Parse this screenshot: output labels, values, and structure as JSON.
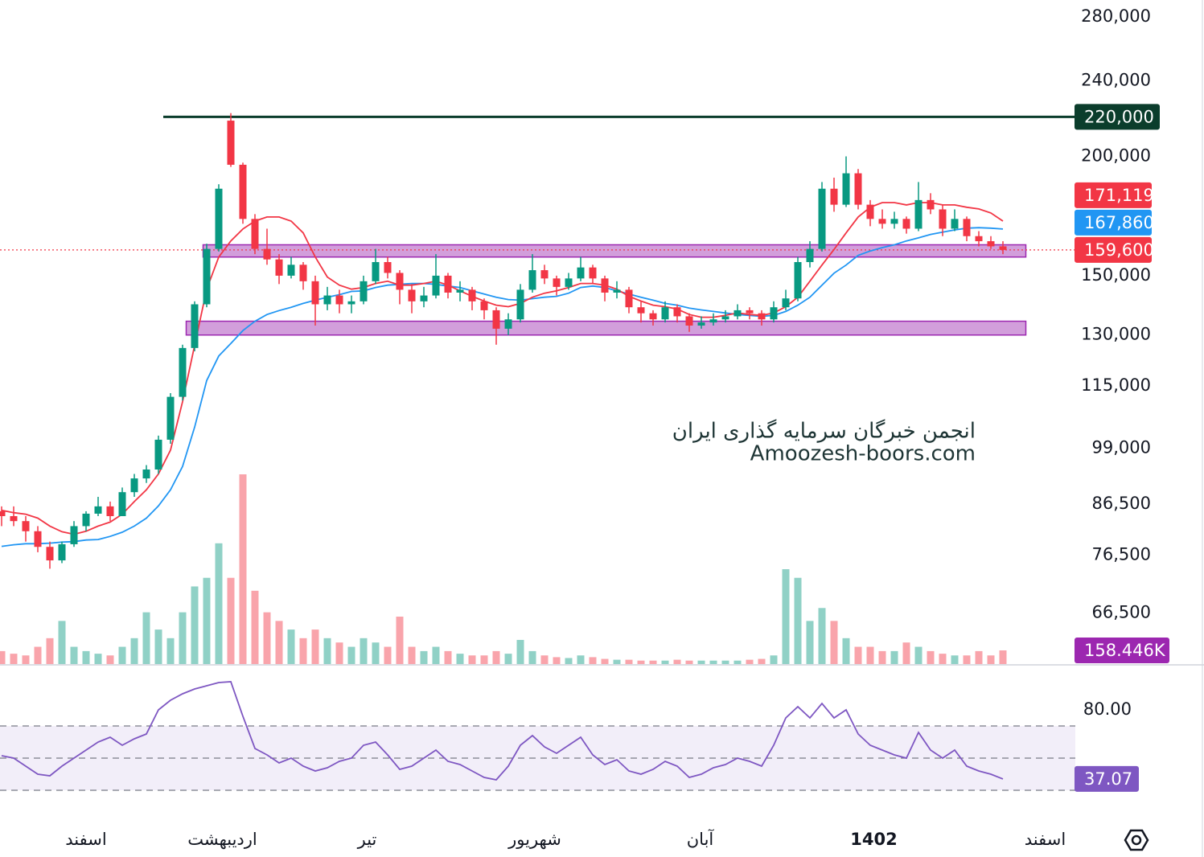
{
  "chart_data": {
    "type": "candlestick",
    "log_scale": true,
    "grid": false,
    "up_color": "#089981",
    "down_color": "#f23645",
    "x": [
      0,
      1,
      2,
      3,
      4,
      5,
      6,
      7,
      8,
      9,
      10,
      11,
      12,
      13,
      14,
      15,
      16,
      17,
      18,
      19,
      20,
      21,
      22,
      23,
      24,
      25,
      26,
      27,
      28,
      29,
      30,
      31,
      32,
      33,
      34,
      35,
      36,
      37,
      38,
      39,
      40,
      41,
      42,
      43,
      44,
      45,
      46,
      47,
      48,
      49,
      50,
      51,
      52,
      53,
      54,
      55,
      56,
      57,
      58,
      59,
      60,
      61,
      62,
      63,
      64,
      65,
      66,
      67,
      68,
      69,
      70,
      71,
      72,
      73,
      74,
      75,
      76,
      77,
      78,
      79,
      80,
      81,
      82,
      83
    ],
    "xlim": [
      0,
      89
    ],
    "xticks": [
      {
        "value": 7,
        "label": "اسفند"
      },
      {
        "value": 18.3,
        "label": "اردیبهشت"
      },
      {
        "value": 30.3,
        "label": "تیر"
      },
      {
        "value": 44.2,
        "label": "شهریور"
      },
      {
        "value": 57.9,
        "label": "آبان"
      },
      {
        "value": 72.3,
        "label": "1402"
      },
      {
        "value": 86.5,
        "label": "اسفند"
      }
    ],
    "ylim": [
      58800,
      291600
    ],
    "yticks": [
      {
        "value": 280000,
        "label": "280,000"
      },
      {
        "value": 240000,
        "label": "240,000"
      },
      {
        "value": 200000,
        "label": "200,000"
      },
      {
        "value": 150000,
        "label": "150,000"
      },
      {
        "value": 130000,
        "label": "130,000"
      },
      {
        "value": 115000,
        "label": "115,000"
      },
      {
        "value": 99000,
        "label": "99,000"
      },
      {
        "value": 86500,
        "label": "86,500"
      },
      {
        "value": 76500,
        "label": "76,500"
      },
      {
        "value": 66500,
        "label": "66,500"
      }
    ],
    "open": [
      85000,
      84000,
      83000,
      81000,
      78000,
      75500,
      78500,
      82000,
      84500,
      86000,
      84000,
      89000,
      92000,
      94000,
      101000,
      112000,
      126000,
      140000,
      160000,
      218000,
      196000,
      172000,
      160000,
      156000,
      150000,
      154000,
      148000,
      140000,
      143000,
      140000,
      141000,
      148000,
      155000,
      151000,
      145000,
      141000,
      143000,
      150000,
      144000,
      145000,
      141000,
      138000,
      132000,
      135000,
      145000,
      152000,
      149000,
      146000,
      149000,
      153000,
      149000,
      144000,
      145000,
      139000,
      137000,
      135000,
      139000,
      136000,
      133000,
      134000,
      135000,
      136000,
      138000,
      137000,
      135000,
      139000,
      142000,
      155000,
      160000,
      185000,
      178000,
      192000,
      178000,
      172000,
      170000,
      172000,
      168000,
      180000,
      176000,
      168000,
      172000,
      165000,
      163000,
      161000
    ],
    "high": [
      86000,
      86000,
      84000,
      82000,
      79000,
      79000,
      83000,
      85000,
      88000,
      87000,
      90000,
      93000,
      95000,
      102000,
      113000,
      127000,
      141000,
      162000,
      187000,
      222000,
      197000,
      174000,
      168000,
      158000,
      157000,
      155000,
      150000,
      146000,
      145000,
      143000,
      150000,
      160000,
      157000,
      152000,
      147000,
      146000,
      158000,
      151000,
      148000,
      146000,
      142000,
      139000,
      137000,
      147000,
      158000,
      154000,
      150000,
      151000,
      157000,
      154000,
      150000,
      148000,
      146000,
      141000,
      138000,
      141000,
      140000,
      137000,
      136000,
      137000,
      138000,
      140000,
      139000,
      138000,
      141000,
      145000,
      157000,
      163000,
      188000,
      190000,
      200000,
      194000,
      180000,
      176000,
      175000,
      173000,
      188000,
      183000,
      178000,
      176000,
      173000,
      167000,
      165000,
      163000
    ],
    "low": [
      82000,
      82000,
      79000,
      77000,
      74000,
      75000,
      78000,
      81000,
      84000,
      83000,
      84000,
      88000,
      91000,
      93000,
      100000,
      111000,
      125000,
      139000,
      159000,
      195000,
      170000,
      158000,
      154000,
      147000,
      149000,
      145000,
      133000,
      138000,
      137000,
      137000,
      140000,
      147000,
      149000,
      140000,
      137000,
      139000,
      142000,
      142000,
      141000,
      138000,
      135000,
      127000,
      130000,
      134000,
      144000,
      147000,
      143000,
      145000,
      148000,
      147000,
      141000,
      142000,
      137000,
      134000,
      133000,
      134000,
      134000,
      131000,
      132000,
      133000,
      134000,
      135000,
      135000,
      133000,
      134000,
      138000,
      141000,
      153000,
      159000,
      175000,
      177000,
      176000,
      169000,
      168000,
      168000,
      166000,
      167000,
      174000,
      165000,
      167000,
      163000,
      161000,
      160000,
      158000
    ],
    "close": [
      84000,
      83000,
      81000,
      78000,
      75500,
      78500,
      82000,
      84500,
      86000,
      84000,
      89000,
      92000,
      94000,
      101000,
      112000,
      126000,
      140000,
      160000,
      185000,
      196000,
      172000,
      160000,
      156000,
      150000,
      154000,
      148000,
      140000,
      143000,
      140000,
      141000,
      148000,
      155000,
      151000,
      145000,
      141000,
      143000,
      150000,
      144000,
      145000,
      141000,
      138000,
      132000,
      135000,
      145000,
      152000,
      149000,
      146000,
      149000,
      153000,
      149000,
      144000,
      145000,
      139000,
      137000,
      135000,
      139000,
      136000,
      133000,
      134000,
      135000,
      136000,
      138000,
      137000,
      135000,
      139000,
      142000,
      155000,
      160000,
      185000,
      178000,
      192000,
      178000,
      172000,
      170000,
      172000,
      168000,
      180000,
      176000,
      168000,
      172000,
      165000,
      163000,
      161000,
      159600
    ],
    "last_price_label": "159,600",
    "ma_fast": {
      "color": "#f23645",
      "last_label": "171,119.5",
      "values": [
        85200,
        84700,
        84400,
        83600,
        82000,
        80900,
        80400,
        81000,
        82000,
        82800,
        84400,
        87000,
        89500,
        93000,
        98500,
        110700,
        126800,
        145200,
        156900,
        163100,
        167900,
        171100,
        172800,
        172800,
        171100,
        166300,
        156900,
        149500,
        146600,
        145200,
        145800,
        147200,
        148000,
        146600,
        146600,
        147200,
        148000,
        146600,
        144600,
        142700,
        141100,
        139700,
        139200,
        140300,
        142400,
        143800,
        144600,
        145800,
        147200,
        147200,
        146600,
        145200,
        142700,
        141100,
        139700,
        139200,
        138400,
        136600,
        135700,
        135700,
        136300,
        137100,
        136600,
        136300,
        137100,
        139200,
        142400,
        148000,
        153900,
        159800,
        166300,
        172800,
        176900,
        178900,
        178900,
        177900,
        178900,
        178900,
        177900,
        177900,
        176900,
        176200,
        174500,
        171119.5
      ]
    },
    "ma_slow": {
      "color": "#2196f3",
      "last_label": "167,860.415",
      "values": [
        78100,
        78400,
        78600,
        78600,
        78700,
        78900,
        79000,
        79300,
        79400,
        80000,
        80800,
        82000,
        83600,
        86100,
        89500,
        94700,
        104100,
        116500,
        123600,
        127400,
        131400,
        134400,
        136600,
        137900,
        139000,
        140300,
        141400,
        142400,
        143300,
        144400,
        144600,
        145800,
        146600,
        146900,
        147200,
        147200,
        146900,
        146300,
        145800,
        144600,
        143500,
        142400,
        141600,
        141400,
        141900,
        142400,
        142700,
        143800,
        145800,
        146300,
        145800,
        144600,
        143500,
        142400,
        141400,
        140300,
        139700,
        138700,
        138100,
        137600,
        137100,
        136600,
        136300,
        136000,
        136300,
        137600,
        139700,
        142400,
        146600,
        150900,
        153900,
        157500,
        159200,
        160500,
        161600,
        163100,
        164300,
        165700,
        166600,
        167500,
        168200,
        168400,
        168200,
        167860.415
      ]
    },
    "resistance": {
      "value": 220000,
      "label": "220,000",
      "from": 13.4,
      "to": 89,
      "color": "#0b3d2c"
    },
    "zones": [
      {
        "low": 156900,
        "high": 161600,
        "from": 16.7,
        "to": 84.9
      },
      {
        "low": 130000,
        "high": 134400,
        "from": 15.3,
        "to": 84.9
      }
    ],
    "zone_color": "#9c27b0",
    "volume": [
      150000,
      120000,
      100000,
      200000,
      300000,
      500000,
      200000,
      150000,
      120000,
      100000,
      200000,
      300000,
      600000,
      400000,
      300000,
      600000,
      900000,
      1000000,
      1400000,
      1000000,
      2200000,
      850000,
      600000,
      500000,
      400000,
      300000,
      400000,
      300000,
      250000,
      200000,
      300000,
      250000,
      200000,
      550000,
      200000,
      150000,
      200000,
      150000,
      120000,
      100000,
      100000,
      150000,
      120000,
      280000,
      150000,
      100000,
      80000,
      70000,
      100000,
      80000,
      60000,
      50000,
      50000,
      40000,
      40000,
      40000,
      50000,
      40000,
      40000,
      40000,
      40000,
      40000,
      50000,
      60000,
      100000,
      1100000,
      1000000,
      500000,
      650000,
      500000,
      300000,
      200000,
      200000,
      150000,
      150000,
      250000,
      200000,
      150000,
      120000,
      100000,
      100000,
      150000,
      100000,
      158446
    ],
    "volume_ylim": [
      0,
      7700000
    ],
    "volume_last_label": "158.446K",
    "volume_label_color": "#9c27b0",
    "rsi": {
      "color": "#7e57c2",
      "values": [
        51.5,
        50,
        45,
        40,
        39,
        45,
        50,
        55,
        60,
        63,
        58,
        62,
        65,
        80,
        86,
        90,
        93,
        95,
        97,
        97.5,
        76,
        56,
        52,
        47,
        50,
        45,
        42,
        44,
        48,
        50,
        58,
        60,
        52,
        43,
        45,
        50,
        55,
        48,
        46,
        42,
        38,
        36.5,
        45,
        58,
        64,
        57,
        53,
        58,
        63,
        52,
        46,
        49,
        42,
        40,
        43,
        48,
        45,
        38,
        40,
        44,
        46,
        50,
        48,
        45,
        58,
        75,
        82,
        75,
        84,
        75,
        80,
        65,
        58,
        55,
        52,
        50,
        66,
        55,
        50,
        55,
        45,
        42,
        40,
        37.07
      ],
      "ylim": [
        11.5,
        107.5
      ],
      "yticks": [
        {
          "value": 80,
          "label": "80.00"
        }
      ],
      "levels": [
        70,
        50,
        30
      ]
    },
    "watermark": [
      "انجمن خبرگان سرمایه گذاری ایران",
      "Amoozesh-boors.com"
    ]
  }
}
